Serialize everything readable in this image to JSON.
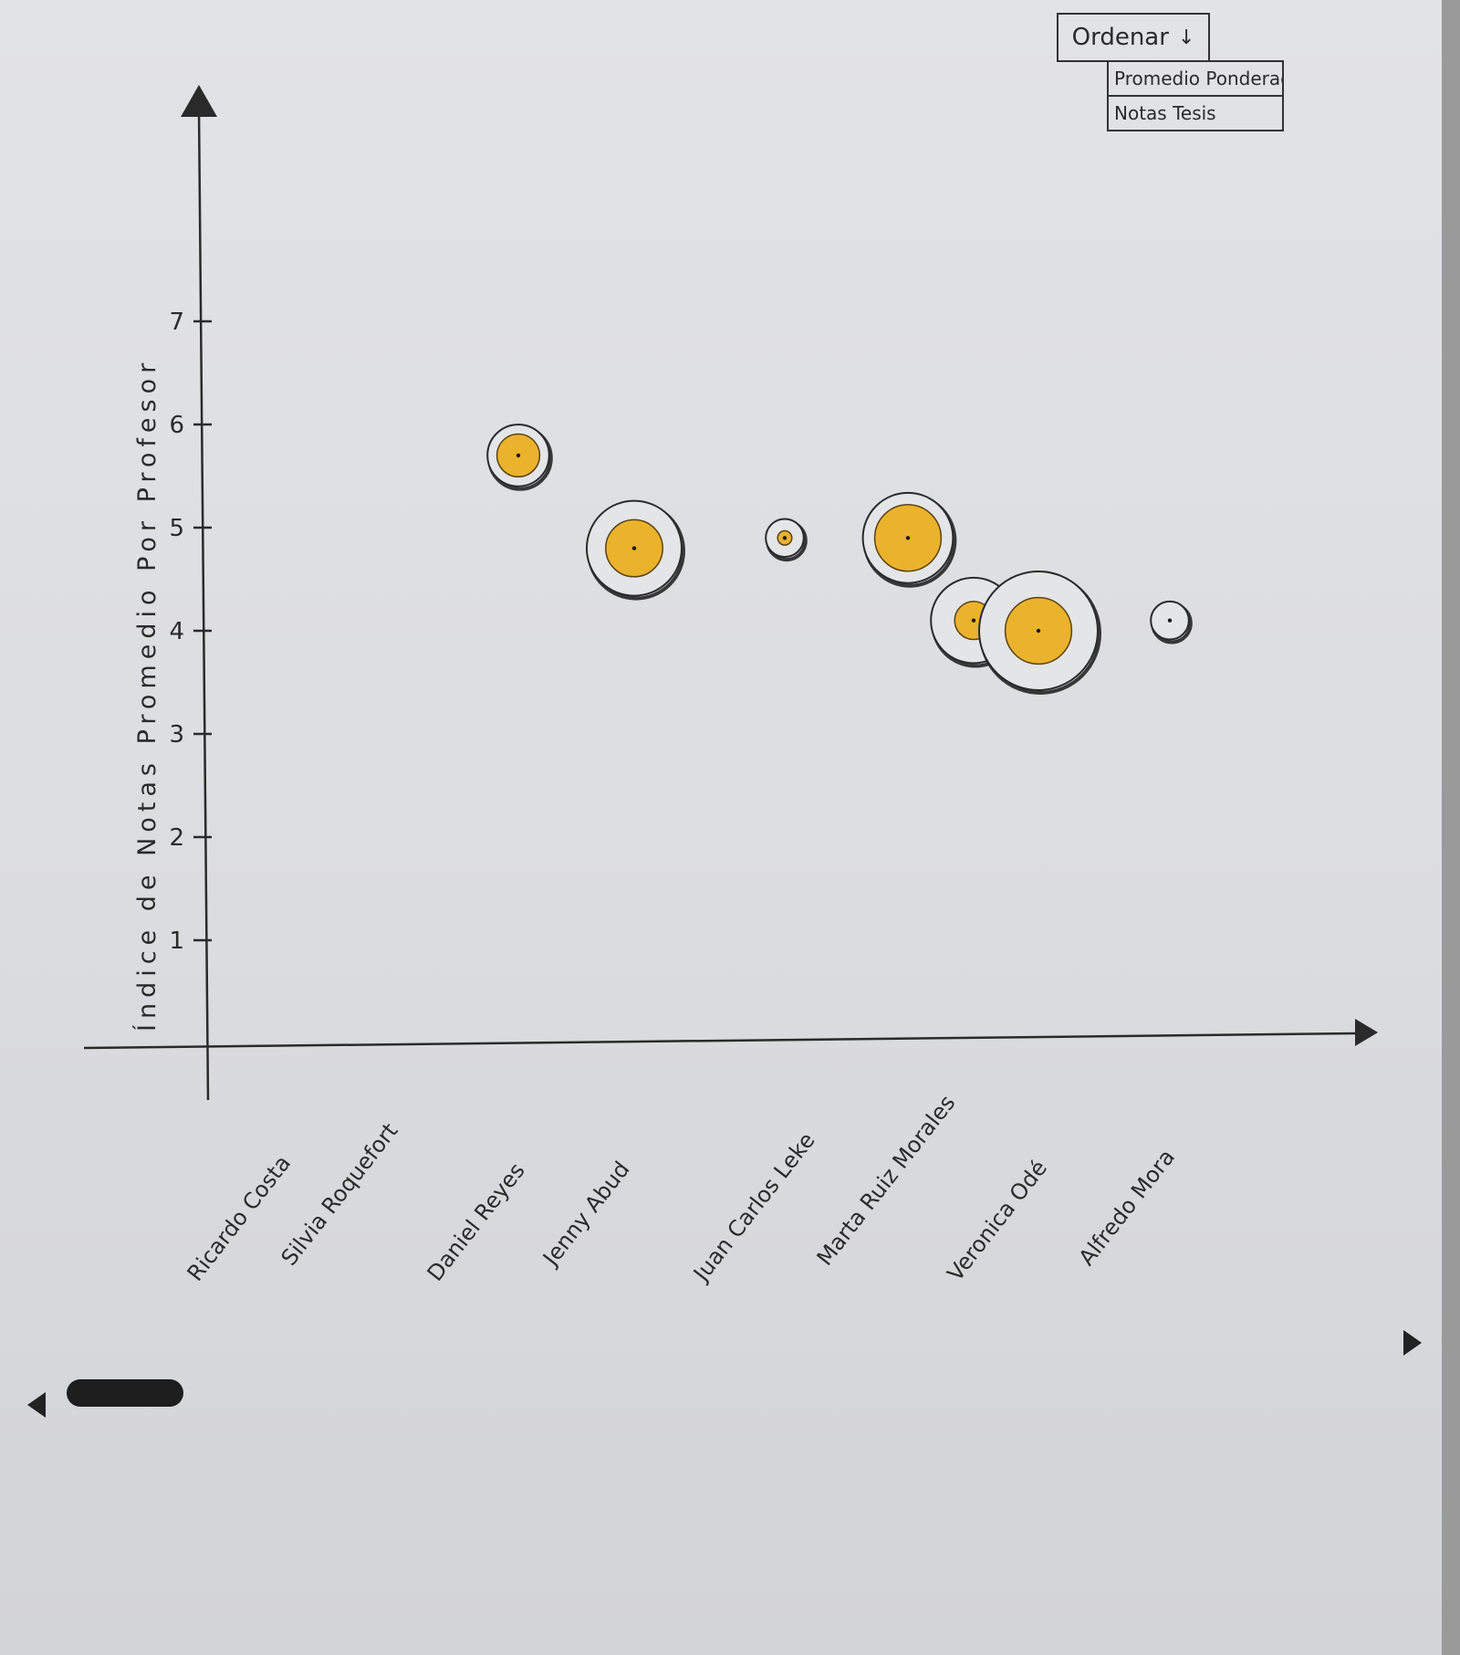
{
  "sort": {
    "button_label": "Ordenar",
    "arrow_glyph": "↓",
    "options": [
      "Promedio Ponderado",
      "Notas Tesis"
    ]
  },
  "chart_data": {
    "type": "bubble",
    "ylabel": "Índice de Notas Promedio Por Profesor",
    "xlabel": "",
    "ylim": [
      0,
      7
    ],
    "yticks": [
      1,
      2,
      3,
      4,
      5,
      6,
      7
    ],
    "categories": [
      "Ricardo Costa",
      "Silvia Roquefort",
      "Daniel Reyes",
      "Jenny Abud",
      "Juan Carlos Leke",
      "Marta Ruiz Morales",
      "Veronica Odé",
      "Alfredo Mora"
    ],
    "points": [
      {
        "category": "Ricardo Costa",
        "y": null,
        "outer": null,
        "inner": null
      },
      {
        "category": "Silvia Roquefort",
        "y": null,
        "outer": null,
        "inner": null
      },
      {
        "category": "Daniel Reyes",
        "y": 5.7,
        "outer": 0.65,
        "inner": 0.45
      },
      {
        "category": "Jenny Abud",
        "y": 4.8,
        "outer": 1.0,
        "inner": 0.6
      },
      {
        "category": "Juan Carlos Leke",
        "y": 4.9,
        "outer": 0.4,
        "inner": 0.15
      },
      {
        "category": "Marta Ruiz Morales",
        "y": 4.9,
        "outer": 0.95,
        "inner": 0.7
      },
      {
        "category": "Marta Ruiz Morales",
        "y": 4.1,
        "outer": 0.9,
        "inner": 0.4
      },
      {
        "category": "Veronica Odé",
        "y": 4.0,
        "outer": 1.25,
        "inner": 0.7
      },
      {
        "category": "Alfredo Mora",
        "y": 4.1,
        "outer": 0.4,
        "inner": 0.0
      }
    ],
    "fill_color": "#ebb22c",
    "stroke_color": "#2a2a2a"
  }
}
